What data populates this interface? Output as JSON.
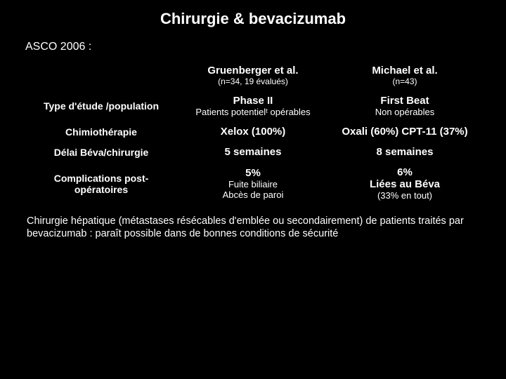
{
  "title": "Chirurgie & bevacizumab",
  "subtitle": "ASCO 2006 :",
  "table": {
    "type": "table",
    "background_color": "#000000",
    "text_color": "#ffffff",
    "columns_count": 3,
    "row_headers": [
      "",
      "Type d'étude /population",
      "Chimiothérapie",
      "Délai Béva/chirurgie",
      "Complications post-opératoires"
    ],
    "col_headers": [
      {
        "main": "Gruenberger et al.",
        "sub": "(n=34, 19 évalués)"
      },
      {
        "main": "Michael et al.",
        "sub": "(n=43)"
      }
    ],
    "rows": {
      "type_etude": [
        {
          "main": "Phase II",
          "sub": "Patients potentielᵗ opérables"
        },
        {
          "main": "First Beat",
          "sub": "Non opérables"
        }
      ],
      "chimio": [
        {
          "main": "Xelox (100%)",
          "sub": ""
        },
        {
          "main": "Oxali (60%) CPT-11 (37%)",
          "sub": ""
        }
      ],
      "delai": [
        {
          "main": "5 semaines",
          "sub": ""
        },
        {
          "main": "8 semaines",
          "sub": ""
        }
      ],
      "complications": [
        {
          "main": "5%",
          "sub1": "Fuite biliaire",
          "sub2": "Abcès de paroi"
        },
        {
          "main": "6%",
          "sub1": "Liées au Béva",
          "sub2": "(33% en tout)"
        }
      ]
    }
  },
  "bottom_text": "Chirurgie hépatique (métastases résécables d'emblée ou secondairement) de patients traités par bevacizumab : paraît possible dans de bonnes conditions de sécurité",
  "styling": {
    "title_fontsize": 22,
    "subtitle_fontsize": 16,
    "rowheader_fontsize": 14,
    "colheader_fontsize": 15,
    "colsub_fontsize": 12,
    "value_strong_fontsize": 15,
    "value_normal_fontsize": 13,
    "bottom_fontsize": 14.5,
    "bg": "#000000",
    "fg": "#ffffff"
  }
}
